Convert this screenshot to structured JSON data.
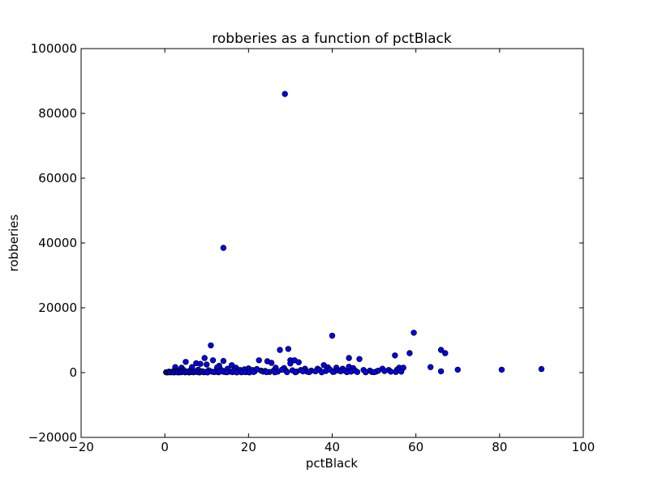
{
  "chart_data": {
    "type": "scatter",
    "title": "robberies as a function of pctBlack",
    "xlabel": "pctBlack",
    "ylabel": "robberies",
    "xlim": [
      -20,
      100
    ],
    "ylim": [
      -20000,
      100000
    ],
    "xticks": [
      -20,
      0,
      20,
      40,
      60,
      80,
      100
    ],
    "yticks": [
      -20000,
      0,
      20000,
      40000,
      60000,
      80000,
      100000
    ],
    "xtick_labels": [
      "−20",
      "0",
      "20",
      "40",
      "60",
      "80",
      "100"
    ],
    "ytick_labels": [
      "−20000",
      "0",
      "20000",
      "40000",
      "60000",
      "80000",
      "100000"
    ],
    "grid": false,
    "marker_color": "#0000ff",
    "series": [
      {
        "points": [
          [
            28.7,
            86000
          ],
          [
            14.0,
            38500
          ],
          [
            11.0,
            8400
          ],
          [
            40.0,
            11400
          ],
          [
            59.5,
            12300
          ],
          [
            27.5,
            7000
          ],
          [
            29.5,
            7300
          ],
          [
            58.5,
            6000
          ],
          [
            66.0,
            7000
          ],
          [
            67.0,
            6000
          ],
          [
            55.0,
            5300
          ],
          [
            44.0,
            4500
          ],
          [
            46.5,
            4200
          ],
          [
            9.5,
            4500
          ],
          [
            5.0,
            3300
          ],
          [
            11.5,
            3800
          ],
          [
            14.0,
            3600
          ],
          [
            22.5,
            3800
          ],
          [
            24.5,
            3500
          ],
          [
            25.5,
            3000
          ],
          [
            30.0,
            3800
          ],
          [
            31.0,
            3800
          ],
          [
            30.0,
            2800
          ],
          [
            32.0,
            3200
          ],
          [
            63.5,
            1700
          ],
          [
            38.0,
            2300
          ],
          [
            7.5,
            2900
          ],
          [
            8.5,
            2700
          ],
          [
            10.0,
            2500
          ],
          [
            16.0,
            2300
          ],
          [
            13.0,
            2100
          ],
          [
            2.5,
            1700
          ],
          [
            4.0,
            1500
          ],
          [
            6.5,
            1700
          ],
          [
            12.5,
            1600
          ],
          [
            17.0,
            1500
          ],
          [
            20.0,
            1300
          ],
          [
            26.5,
            1500
          ],
          [
            28.5,
            1400
          ],
          [
            33.5,
            1200
          ],
          [
            36.5,
            1200
          ],
          [
            39.0,
            1600
          ],
          [
            41.0,
            1500
          ],
          [
            42.5,
            1200
          ],
          [
            44.0,
            1800
          ],
          [
            45.0,
            1400
          ],
          [
            52.0,
            1200
          ],
          [
            56.0,
            1500
          ],
          [
            57.0,
            1500
          ],
          [
            70.0,
            900
          ],
          [
            80.5,
            900
          ],
          [
            90.0,
            1100
          ],
          [
            66.0,
            400
          ],
          [
            1.0,
            300
          ],
          [
            1.5,
            150
          ],
          [
            2.0,
            400
          ],
          [
            3.0,
            600
          ],
          [
            3.5,
            200
          ],
          [
            4.5,
            800
          ],
          [
            5.5,
            300
          ],
          [
            6.0,
            600
          ],
          [
            7.0,
            200
          ],
          [
            8.0,
            900
          ],
          [
            9.0,
            400
          ],
          [
            10.5,
            700
          ],
          [
            12.0,
            300
          ],
          [
            13.5,
            800
          ],
          [
            14.5,
            500
          ],
          [
            15.0,
            1200
          ],
          [
            15.5,
            300
          ],
          [
            16.5,
            700
          ],
          [
            17.5,
            400
          ],
          [
            18.0,
            800
          ],
          [
            18.5,
            300
          ],
          [
            19.0,
            1000
          ],
          [
            19.5,
            200
          ],
          [
            20.5,
            500
          ],
          [
            21.0,
            800
          ],
          [
            21.5,
            400
          ],
          [
            22.0,
            1100
          ],
          [
            23.0,
            600
          ],
          [
            23.5,
            300
          ],
          [
            24.0,
            500
          ],
          [
            25.0,
            200
          ],
          [
            26.0,
            600
          ],
          [
            27.0,
            300
          ],
          [
            28.0,
            900
          ],
          [
            29.0,
            500
          ],
          [
            30.5,
            700
          ],
          [
            31.5,
            300
          ],
          [
            32.5,
            800
          ],
          [
            33.0,
            400
          ],
          [
            34.0,
            300
          ],
          [
            35.0,
            600
          ],
          [
            36.0,
            400
          ],
          [
            37.0,
            800
          ],
          [
            38.5,
            500
          ],
          [
            39.5,
            900
          ],
          [
            40.5,
            300
          ],
          [
            41.5,
            700
          ],
          [
            42.0,
            400
          ],
          [
            43.0,
            600
          ],
          [
            44.5,
            300
          ],
          [
            45.5,
            600
          ],
          [
            46.0,
            200
          ],
          [
            47.5,
            800
          ],
          [
            49.0,
            600
          ],
          [
            49.5,
            200
          ],
          [
            50.5,
            300
          ],
          [
            51.0,
            600
          ],
          [
            52.5,
            500
          ],
          [
            53.5,
            800
          ],
          [
            54.0,
            300
          ],
          [
            55.5,
            900
          ],
          [
            56.5,
            300
          ],
          [
            0.3,
            100
          ],
          [
            0.6,
            50
          ],
          [
            0.9,
            200
          ],
          [
            1.2,
            80
          ],
          [
            1.8,
            120
          ],
          [
            2.2,
            60
          ],
          [
            2.8,
            150
          ],
          [
            3.2,
            50
          ],
          [
            3.8,
            100
          ],
          [
            4.2,
            250
          ],
          [
            4.8,
            80
          ],
          [
            5.2,
            150
          ],
          [
            5.8,
            60
          ],
          [
            6.3,
            200
          ],
          [
            6.8,
            100
          ],
          [
            7.3,
            400
          ],
          [
            7.8,
            150
          ],
          [
            8.3,
            50
          ],
          [
            8.8,
            300
          ],
          [
            9.3,
            100
          ],
          [
            9.8,
            200
          ],
          [
            10.2,
            60
          ],
          [
            11.2,
            300
          ],
          [
            11.8,
            150
          ],
          [
            12.8,
            100
          ],
          [
            13.2,
            300
          ],
          [
            14.2,
            200
          ],
          [
            14.8,
            100
          ],
          [
            16.2,
            150
          ],
          [
            17.2,
            60
          ],
          [
            18.3,
            100
          ],
          [
            19.2,
            150
          ],
          [
            20.2,
            60
          ],
          [
            21.2,
            200
          ],
          [
            24.3,
            150
          ],
          [
            26.3,
            100
          ],
          [
            29.2,
            150
          ],
          [
            31.2,
            100
          ],
          [
            34.5,
            150
          ],
          [
            37.5,
            100
          ],
          [
            40.2,
            200
          ],
          [
            43.5,
            150
          ],
          [
            48.0,
            100
          ],
          [
            50.0,
            150
          ],
          [
            55.2,
            200
          ]
        ]
      }
    ]
  }
}
